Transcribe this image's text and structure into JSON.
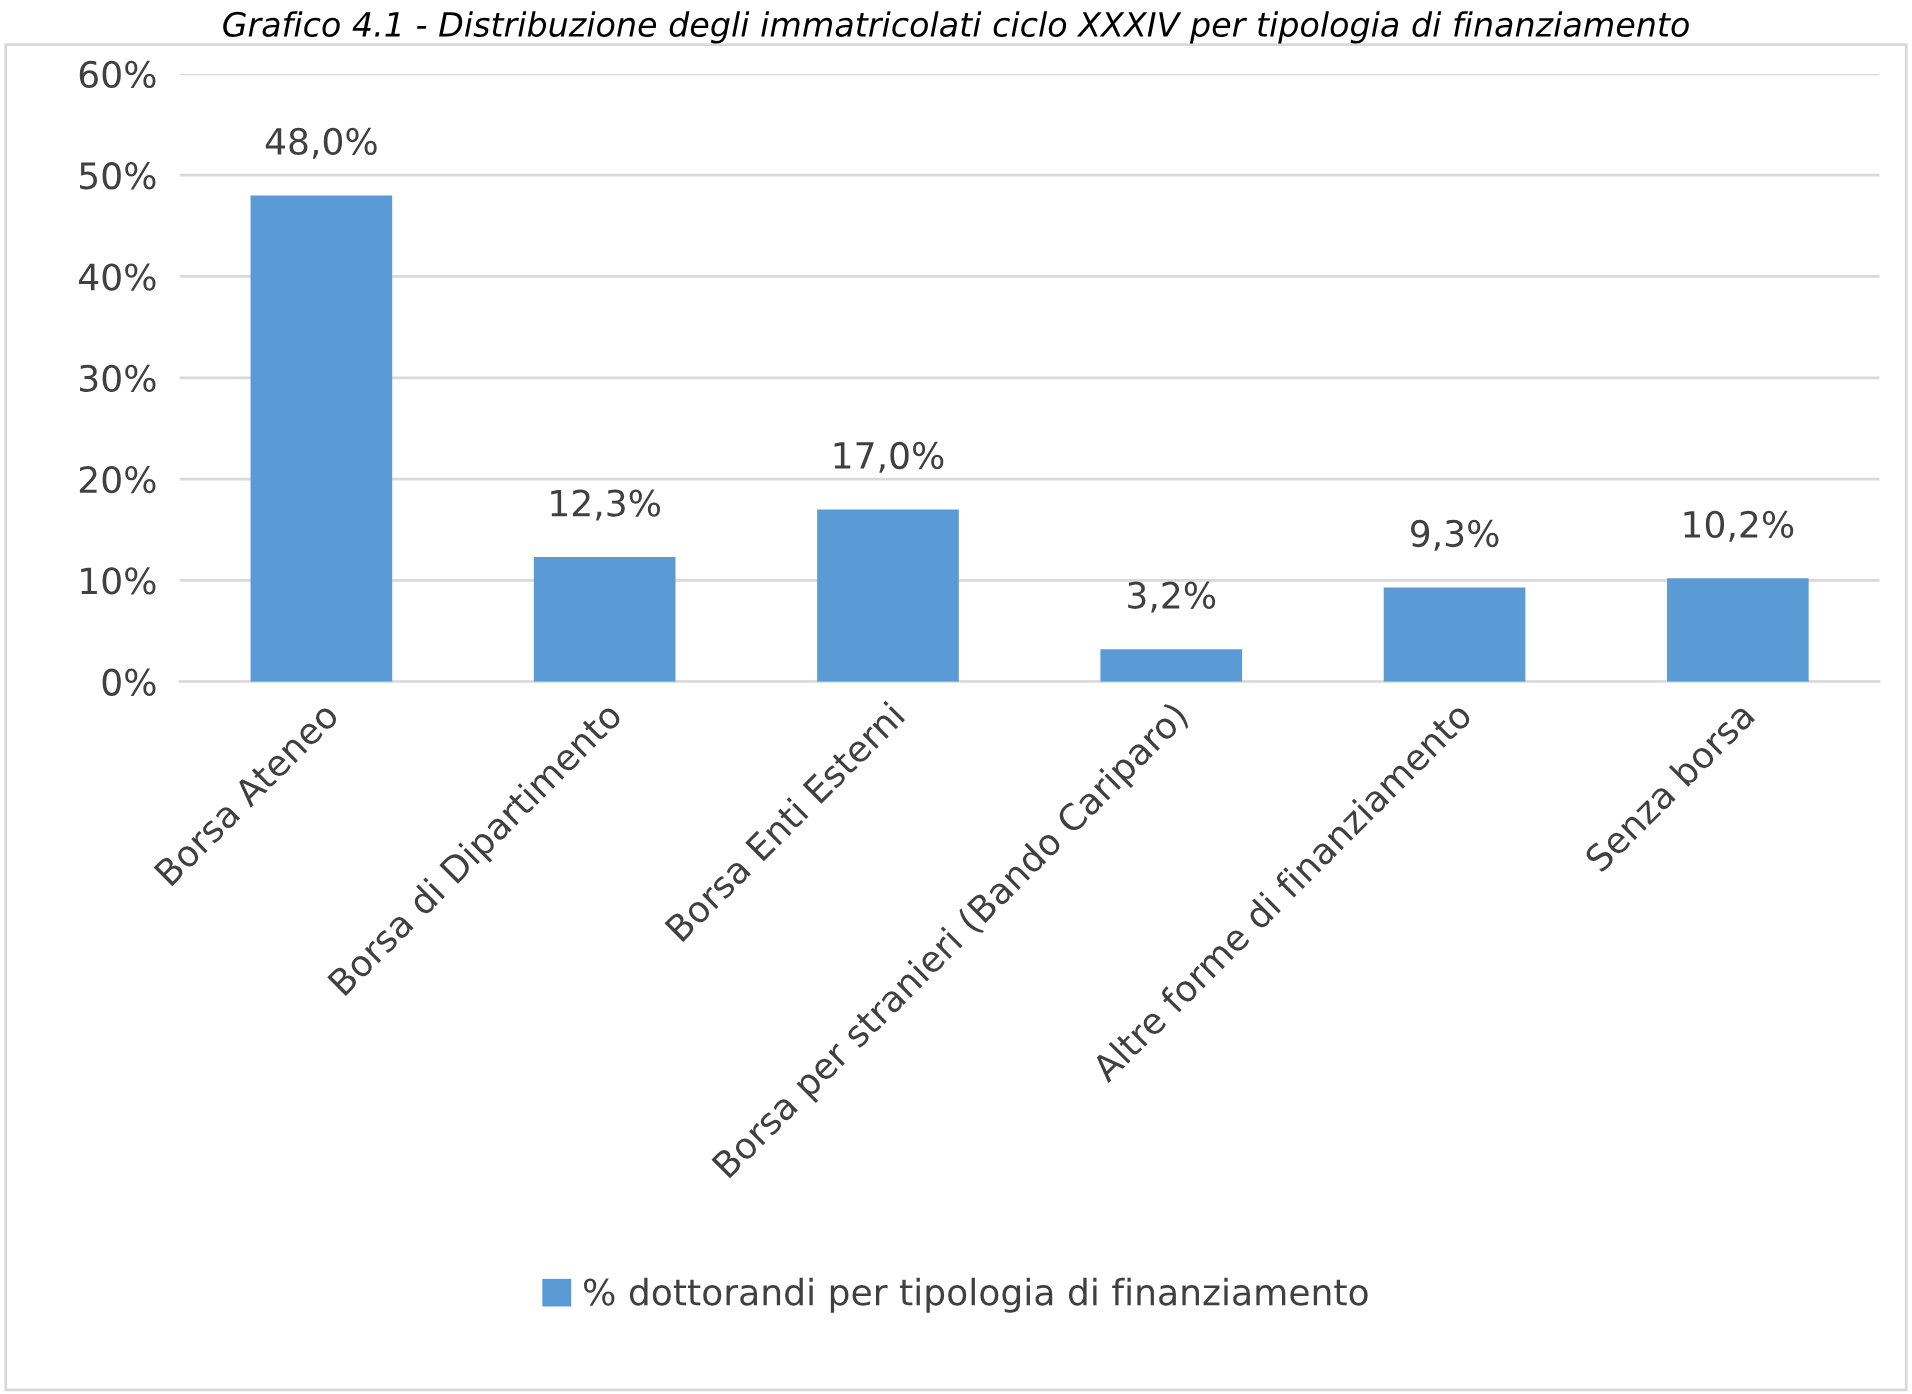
{
  "chart_data": {
    "type": "bar",
    "title": "Grafico 4.1 - Distribuzione degli immatricolati ciclo XXXIV per tipologia di finanziamento",
    "categories": [
      "Borsa Ateneo",
      "Borsa di Dipartimento",
      "Borsa Enti Esterni",
      "Borsa per stranieri (Bando Cariparo)",
      "Altre forme di finanziamento",
      "Senza borsa"
    ],
    "series": [
      {
        "name": "% dottorandi per tipologia di finanziamento",
        "color": "#5b9bd5",
        "values": [
          48.0,
          12.3,
          17.0,
          3.2,
          9.3,
          10.2
        ],
        "value_labels": [
          "48,0%",
          "12,3%",
          "17,0%",
          "3,2%",
          "9,3%",
          "10,2%"
        ]
      }
    ],
    "ylim": [
      0,
      60
    ],
    "yticks": [
      {
        "value": 0,
        "label": "0%"
      },
      {
        "value": 10,
        "label": "10%"
      },
      {
        "value": 20,
        "label": "20%"
      },
      {
        "value": 30,
        "label": "30%"
      },
      {
        "value": 40,
        "label": "40%"
      },
      {
        "value": 50,
        "label": "50%"
      },
      {
        "value": 60,
        "label": "60%"
      }
    ],
    "grid": "y",
    "legend": "bottom"
  }
}
